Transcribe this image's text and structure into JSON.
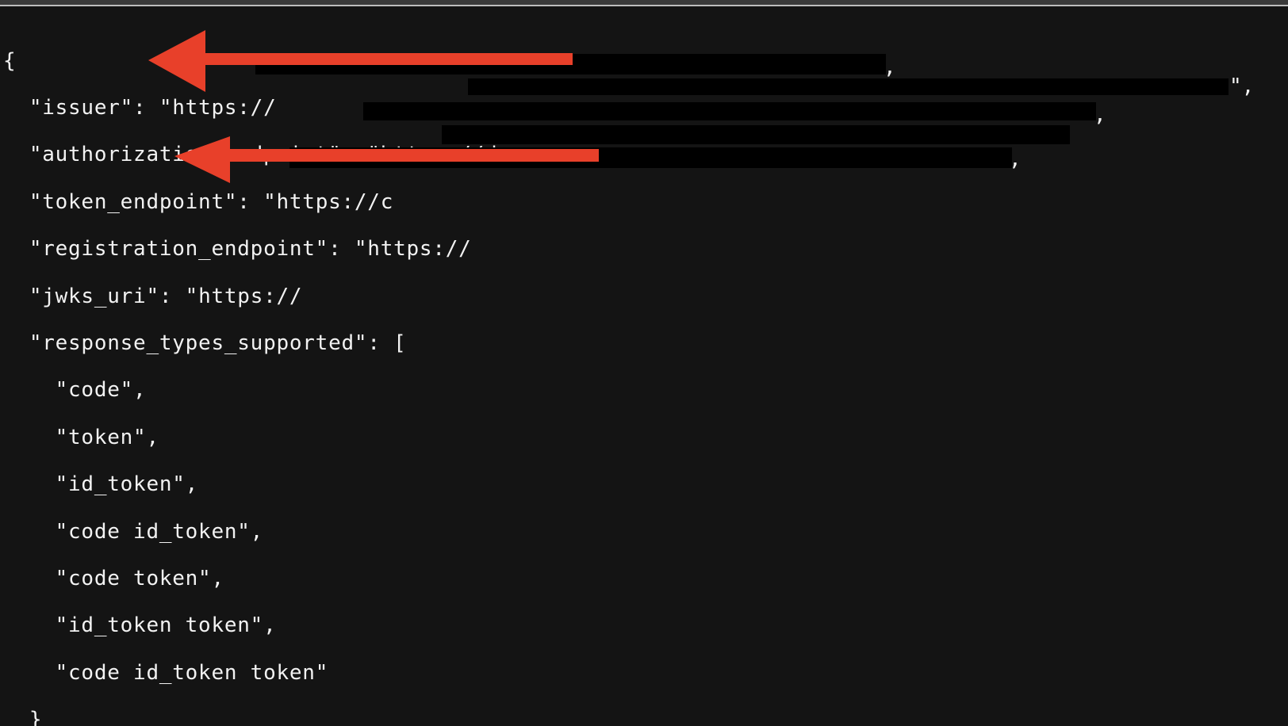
{
  "terminal": {
    "open_brace": "{",
    "close_brace": "}",
    "lines": [
      {
        "key": "\"issuer\"",
        "value_visible": "\"https://"
      },
      {
        "key": "\"authorization_endpoint\"",
        "value_visible": "\"https://d"
      },
      {
        "key": "\"token_endpoint\"",
        "value_visible": "\"https://c"
      },
      {
        "key": "\"registration_endpoint\"",
        "value_visible": "\"https://"
      },
      {
        "key": "\"jwks_uri\"",
        "value_visible": "\"https://"
      },
      {
        "key": "\"response_types_supported\"",
        "value_visible": "["
      }
    ],
    "response_types": [
      "\"code\",",
      "\"token\",",
      "\"id_token\",",
      "\"code id_token\",",
      "\"code token\",",
      "\"id_token token\",",
      "\"code id_token token\""
    ],
    "trailing_comma": ",",
    "trailing_quote_comma": "\","
  },
  "colors": {
    "background": "#141414",
    "text": "#f2f2f2",
    "arrow": "#e8402a",
    "redaction": "#000000"
  },
  "annotations": [
    {
      "icon": "arrow-left-icon",
      "points_to": "issuer"
    },
    {
      "icon": "arrow-left-icon",
      "points_to": "jwks_uri"
    }
  ]
}
